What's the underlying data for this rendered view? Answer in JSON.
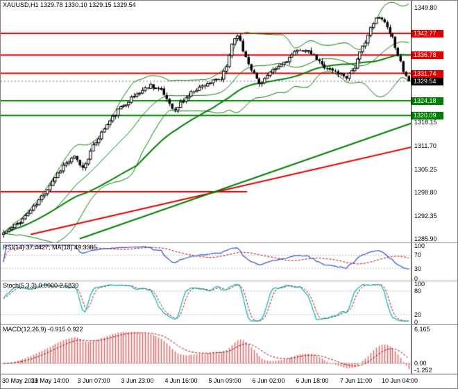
{
  "window": {
    "title": "XAUUSD,H1 1329.78 1330.10 1329.15 1329.54"
  },
  "chart_data": {
    "type": "candlestick",
    "symbol": "XAUUSD",
    "timeframe": "H1",
    "quote": {
      "open": "1329.78",
      "high": "1330.10",
      "low": "1329.15",
      "close": "1329.54"
    },
    "price_axis": {
      "min": 1285.0,
      "max": 1351.8,
      "plain_labels": [
        "1349.80",
        "1318.15",
        "1311.70",
        "1305.25",
        "1298.80",
        "1292.35",
        "1285.90"
      ],
      "plain_values": [
        1349.8,
        1318.15,
        1311.7,
        1305.25,
        1298.8,
        1292.35,
        1285.9
      ]
    },
    "levels": [
      {
        "label": "1342.77",
        "value": 1342.77,
        "color": "#dd0000",
        "type": "resistance"
      },
      {
        "label": "1336.78",
        "value": 1336.78,
        "color": "#dd0000",
        "type": "resistance"
      },
      {
        "label": "1331.74",
        "value": 1331.74,
        "color": "#dd0000",
        "type": "resistance"
      },
      {
        "label": "1329.54",
        "value": 1329.54,
        "color": "#000000",
        "type": "current-price"
      },
      {
        "label": "1324.18",
        "value": 1324.18,
        "color": "#008000",
        "type": "support"
      },
      {
        "label": "1320.09",
        "value": 1320.09,
        "color": "#008000",
        "type": "support"
      }
    ],
    "partial_level": {
      "value": 1299.0,
      "color": "#dd0000",
      "extent": 0.6
    },
    "trendlines": [
      {
        "from": [
          10,
          1287.2
        ],
        "to": [
          151,
          1311.5
        ],
        "color": "#dd0000",
        "width": 2
      },
      {
        "from": [
          28,
          1286.0
        ],
        "to": [
          151,
          1318.2
        ],
        "color": "#008000",
        "width": 2
      }
    ],
    "time_labels": [
      "30 May 2019",
      "31 May 14:00",
      "3 Jun 07:00",
      "3 Jun 23:00",
      "4 Jun 16:00",
      "5 Jun 09:00",
      "6 Jun 02:00",
      "6 Jun 18:00",
      "7 Jun 11:00",
      "10 Jun 04:00"
    ],
    "candle_count": 150,
    "close_anchors": [
      [
        0,
        1287.6
      ],
      [
        3,
        1289.0
      ],
      [
        7,
        1291.5
      ],
      [
        12,
        1295.5
      ],
      [
        17,
        1301.0
      ],
      [
        22,
        1306.2
      ],
      [
        26,
        1308.5
      ],
      [
        29,
        1305.5
      ],
      [
        33,
        1311.5
      ],
      [
        37,
        1316.5
      ],
      [
        42,
        1321.5
      ],
      [
        46,
        1324.2
      ],
      [
        49,
        1326.0
      ],
      [
        54,
        1328.5
      ],
      [
        58,
        1327.0
      ],
      [
        61,
        1323.5
      ],
      [
        63,
        1321.3
      ],
      [
        65,
        1323.5
      ],
      [
        70,
        1327.0
      ],
      [
        75,
        1329.0
      ],
      [
        80,
        1330.2
      ],
      [
        82,
        1333.5
      ],
      [
        84,
        1340.0
      ],
      [
        86,
        1342.6
      ],
      [
        88,
        1338.0
      ],
      [
        91,
        1333.0
      ],
      [
        94,
        1328.8
      ],
      [
        97,
        1331.0
      ],
      [
        101,
        1333.5
      ],
      [
        105,
        1336.0
      ],
      [
        109,
        1338.5
      ],
      [
        113,
        1337.2
      ],
      [
        117,
        1334.0
      ],
      [
        121,
        1332.5
      ],
      [
        126,
        1330.8
      ],
      [
        129,
        1333.5
      ],
      [
        132,
        1339.0
      ],
      [
        135,
        1344.0
      ],
      [
        137,
        1346.8
      ],
      [
        139,
        1347.2
      ],
      [
        141,
        1344.5
      ],
      [
        143,
        1341.5
      ],
      [
        145,
        1337.0
      ],
      [
        147,
        1332.0
      ],
      [
        149,
        1329.54
      ]
    ],
    "bands": {
      "bollinger_period": 20,
      "bollinger_dev": 2,
      "long_ma_period": 50,
      "color": "#008000"
    },
    "candle_colors": {
      "bull": "#ffffff",
      "bear": "#000000",
      "outline": "#000000"
    },
    "indicators": {
      "rsi": {
        "label": "RSI(14) 37.4427, MA(18) 49.3385",
        "period": 14,
        "ma_period": 18,
        "last": "37.4427",
        "ma_last": "49.3385",
        "axis_labels": [
          "100",
          "70",
          "30",
          "0"
        ],
        "axis_values": [
          100,
          70,
          30,
          0
        ],
        "guides": [
          70,
          30
        ],
        "line_color": "#3050c8",
        "ma_color": "#c00000"
      },
      "stoch": {
        "label": "Stoch(5,3,3) 0.0000 2.5830",
        "k_last": "0.0000",
        "d_last": "2.5830",
        "axis_labels": [
          "100",
          "80",
          "20",
          "0"
        ],
        "axis_values": [
          100,
          80,
          20,
          0
        ],
        "guides": [
          80,
          20
        ],
        "k_color": "#00b4b4",
        "d_color": "#c00000"
      },
      "macd": {
        "label": "MACD(12,26,9) -0.915 0.922",
        "main_last": "-0.915",
        "signal_last": "0.922",
        "axis_labels": [
          "6.165",
          "0.00",
          "-1.252"
        ],
        "axis_values": [
          6.165,
          0,
          -1.252
        ],
        "range_min": -1.6,
        "range_max": 6.6,
        "hist_color": "#d87070",
        "signal_color": "#b00000",
        "zero_color": "#b8b8b8"
      }
    }
  }
}
